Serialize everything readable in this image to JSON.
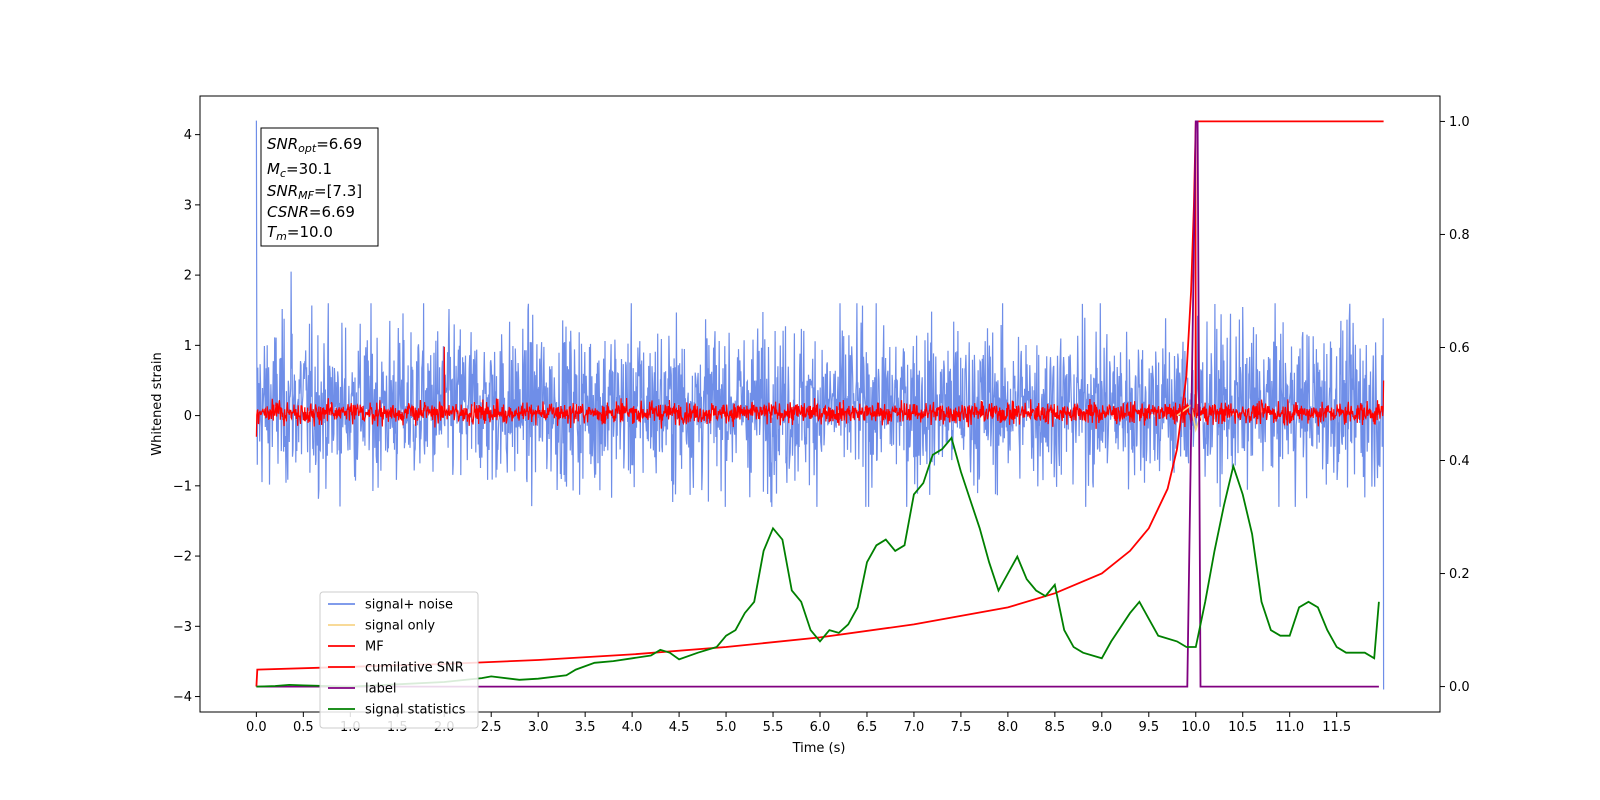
{
  "chart_data": {
    "type": "line",
    "xlabel": "Time (s)",
    "ylabel": "Whitened strain",
    "xlim": [
      -0.6,
      12.6
    ],
    "ylim": [
      -4.22,
      4.55
    ],
    "y2lim": [
      -0.045,
      1.045
    ],
    "x_ticks": [
      "0.0",
      "0.5",
      "1.0",
      "1.5",
      "2.0",
      "2.5",
      "3.0",
      "3.5",
      "4.0",
      "4.5",
      "5.0",
      "5.5",
      "6.0",
      "6.5",
      "7.0",
      "7.5",
      "8.0",
      "8.5",
      "9.0",
      "9.5",
      "10.0",
      "10.5",
      "11.0",
      "11.5"
    ],
    "y_ticks": [
      "4",
      "3",
      "2",
      "1",
      "0",
      "−1",
      "−2",
      "−3",
      "−4"
    ],
    "y2_ticks": [
      "1.0",
      "0.8",
      "0.6",
      "0.4",
      "0.2",
      "0.0"
    ],
    "legend_position": "lower-left",
    "colors": {
      "signal_noise": "#6f8ee8",
      "signal_only": "#f7d58a",
      "mf": "#ff0000",
      "cumulative_snr": "#ff0000",
      "label": "#800080",
      "signal_statistics": "#008000"
    },
    "stats_box": {
      "snr_opt": {
        "main": "SNR",
        "sub": "opt",
        "value": "=6.69"
      },
      "mc": {
        "main": "M",
        "sub": "c",
        "value": "=30.1"
      },
      "snr_mf": {
        "main": "SNR",
        "sub": "MF",
        "value": "=[7.3]"
      },
      "csnr": {
        "main": "CSNR",
        "value": "=6.69"
      },
      "tm": {
        "main": "T",
        "sub": "m",
        "value": "=10.0"
      }
    },
    "series": [
      {
        "name": "signal+ noise",
        "axis": "left",
        "envelope": {
          "low": -1.3,
          "high": 1.6,
          "t_start": 0.0,
          "t_end": 12.0
        },
        "spikes": [
          [
            0.0,
            4.2
          ],
          [
            0.01,
            -0.7
          ],
          [
            0.37,
            2.05
          ],
          [
            12.0,
            -3.9
          ]
        ]
      },
      {
        "name": "signal only",
        "axis": "left",
        "points": [
          [
            9.8,
            0.0
          ],
          [
            9.95,
            0.15
          ],
          [
            10.0,
            -0.2
          ],
          [
            10.05,
            0.0
          ]
        ]
      },
      {
        "name": "MF",
        "axis": "left",
        "envelope": {
          "low": -0.2,
          "high": 0.28,
          "t_start": 0.0,
          "t_end": 12.0
        },
        "spikes": [
          [
            0.0,
            0.45
          ],
          [
            0.0,
            -0.3
          ],
          [
            2.0,
            0.98
          ],
          [
            10.0,
            4.2
          ],
          [
            12.0,
            0.5
          ]
        ]
      },
      {
        "name": "cumilative SNR",
        "axis": "right",
        "points": [
          [
            0.0,
            0.0
          ],
          [
            0.01,
            0.03
          ],
          [
            1.0,
            0.035
          ],
          [
            2.0,
            0.04
          ],
          [
            3.0,
            0.047
          ],
          [
            4.0,
            0.057
          ],
          [
            5.0,
            0.07
          ],
          [
            6.0,
            0.087
          ],
          [
            7.0,
            0.11
          ],
          [
            8.0,
            0.14
          ],
          [
            8.5,
            0.165
          ],
          [
            9.0,
            0.2
          ],
          [
            9.3,
            0.24
          ],
          [
            9.5,
            0.28
          ],
          [
            9.7,
            0.35
          ],
          [
            9.8,
            0.42
          ],
          [
            9.9,
            0.55
          ],
          [
            9.95,
            0.7
          ],
          [
            9.98,
            0.85
          ],
          [
            10.0,
            1.0
          ],
          [
            12.0,
            1.0
          ]
        ]
      },
      {
        "name": "label",
        "axis": "right",
        "points": [
          [
            0.0,
            0.0
          ],
          [
            9.91,
            0.0
          ],
          [
            10.0,
            1.0
          ],
          [
            10.02,
            1.0
          ],
          [
            10.05,
            0.0
          ],
          [
            11.95,
            0.0
          ]
        ]
      },
      {
        "name": "signal statistics",
        "axis": "right",
        "points": [
          [
            0.0,
            0.0
          ],
          [
            0.2,
            0.001
          ],
          [
            0.35,
            0.003
          ],
          [
            0.5,
            0.002
          ],
          [
            1.0,
            0.0
          ],
          [
            1.5,
            0.004
          ],
          [
            2.0,
            0.008
          ],
          [
            2.4,
            0.015
          ],
          [
            2.5,
            0.018
          ],
          [
            2.8,
            0.012
          ],
          [
            3.0,
            0.014
          ],
          [
            3.3,
            0.02
          ],
          [
            3.4,
            0.03
          ],
          [
            3.6,
            0.042
          ],
          [
            3.8,
            0.045
          ],
          [
            4.0,
            0.05
          ],
          [
            4.2,
            0.055
          ],
          [
            4.3,
            0.065
          ],
          [
            4.4,
            0.06
          ],
          [
            4.5,
            0.048
          ],
          [
            4.7,
            0.06
          ],
          [
            4.9,
            0.07
          ],
          [
            5.0,
            0.09
          ],
          [
            5.1,
            0.1
          ],
          [
            5.2,
            0.13
          ],
          [
            5.3,
            0.15
          ],
          [
            5.4,
            0.24
          ],
          [
            5.5,
            0.28
          ],
          [
            5.6,
            0.26
          ],
          [
            5.7,
            0.17
          ],
          [
            5.8,
            0.15
          ],
          [
            5.9,
            0.1
          ],
          [
            6.0,
            0.08
          ],
          [
            6.1,
            0.1
          ],
          [
            6.2,
            0.095
          ],
          [
            6.3,
            0.11
          ],
          [
            6.4,
            0.14
          ],
          [
            6.5,
            0.22
          ],
          [
            6.6,
            0.25
          ],
          [
            6.7,
            0.26
          ],
          [
            6.8,
            0.24
          ],
          [
            6.9,
            0.25
          ],
          [
            7.0,
            0.34
          ],
          [
            7.1,
            0.36
          ],
          [
            7.2,
            0.41
          ],
          [
            7.3,
            0.42
          ],
          [
            7.4,
            0.44
          ],
          [
            7.5,
            0.38
          ],
          [
            7.6,
            0.33
          ],
          [
            7.7,
            0.28
          ],
          [
            7.8,
            0.22
          ],
          [
            7.9,
            0.17
          ],
          [
            8.0,
            0.2
          ],
          [
            8.1,
            0.23
          ],
          [
            8.2,
            0.19
          ],
          [
            8.3,
            0.17
          ],
          [
            8.4,
            0.16
          ],
          [
            8.5,
            0.18
          ],
          [
            8.6,
            0.1
          ],
          [
            8.7,
            0.07
          ],
          [
            8.8,
            0.06
          ],
          [
            9.0,
            0.05
          ],
          [
            9.1,
            0.08
          ],
          [
            9.3,
            0.13
          ],
          [
            9.4,
            0.15
          ],
          [
            9.5,
            0.12
          ],
          [
            9.6,
            0.09
          ],
          [
            9.8,
            0.08
          ],
          [
            9.9,
            0.07
          ],
          [
            10.0,
            0.07
          ],
          [
            10.1,
            0.15
          ],
          [
            10.2,
            0.24
          ],
          [
            10.3,
            0.32
          ],
          [
            10.4,
            0.39
          ],
          [
            10.5,
            0.34
          ],
          [
            10.6,
            0.27
          ],
          [
            10.7,
            0.15
          ],
          [
            10.8,
            0.1
          ],
          [
            10.9,
            0.09
          ],
          [
            11.0,
            0.09
          ],
          [
            11.1,
            0.14
          ],
          [
            11.2,
            0.15
          ],
          [
            11.3,
            0.14
          ],
          [
            11.4,
            0.1
          ],
          [
            11.5,
            0.07
          ],
          [
            11.6,
            0.06
          ],
          [
            11.8,
            0.06
          ],
          [
            11.9,
            0.05
          ],
          [
            11.95,
            0.15
          ]
        ]
      }
    ]
  }
}
